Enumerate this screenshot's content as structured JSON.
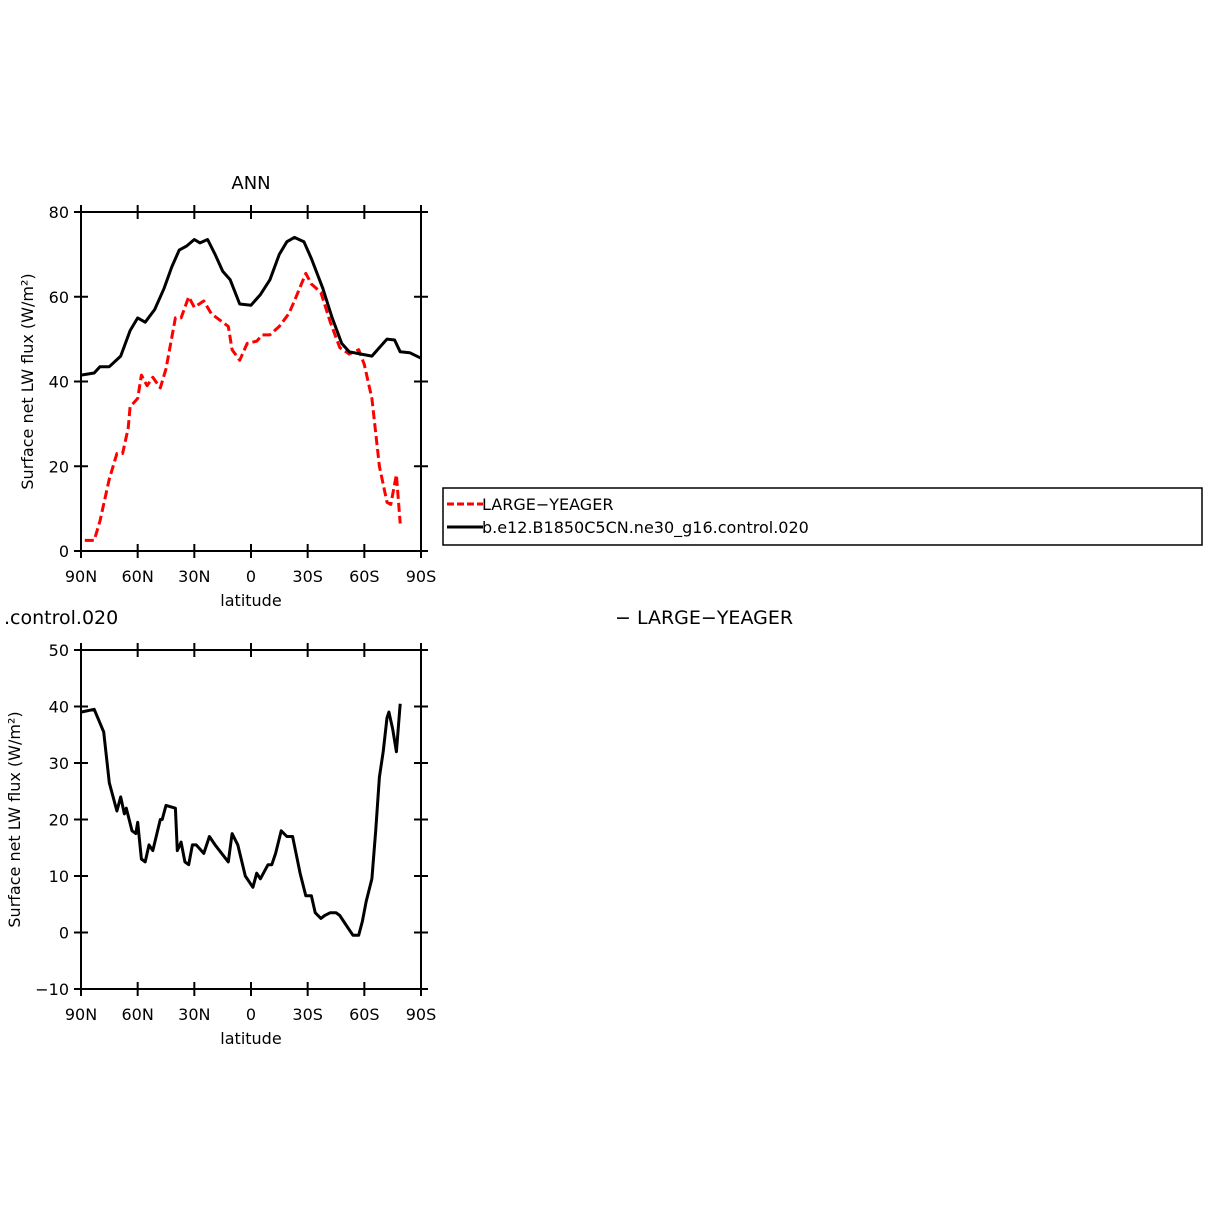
{
  "chart_data": [
    {
      "type": "line",
      "title": "ANN",
      "xlabel": "latitude",
      "ylabel": "Surface net LW flux (W/m²)",
      "xlim": [
        90,
        -90
      ],
      "ylim": [
        0,
        80
      ],
      "xticks": [
        {
          "value": 90,
          "label": "90N"
        },
        {
          "value": 60,
          "label": "60N"
        },
        {
          "value": 30,
          "label": "30N"
        },
        0,
        {
          "value": -30,
          "label": "30S"
        },
        {
          "value": -60,
          "label": "60S"
        },
        {
          "value": -90,
          "label": "90S"
        }
      ],
      "yticks": [
        0,
        20,
        40,
        60,
        80
      ],
      "legend": "right",
      "series": [
        {
          "name": "LARGE−YEAGER",
          "color": "#ff0000",
          "dashed": true,
          "x": [
            88,
            83,
            80,
            75,
            71,
            68,
            65,
            64,
            60,
            58,
            55,
            52,
            48,
            45,
            40,
            37,
            33,
            30,
            25,
            21,
            15,
            12,
            10,
            6,
            2,
            -3,
            -6,
            -10,
            -15,
            -20,
            -23,
            -29,
            -32,
            -37,
            -42,
            -47,
            -52,
            -57,
            -60,
            -64,
            -68,
            -72,
            -74,
            -77,
            -79
          ],
          "values": [
            2.5,
            2.5,
            7,
            17,
            23,
            23,
            29,
            34,
            36,
            41.5,
            39,
            41,
            38.5,
            43,
            55,
            55,
            60,
            57.5,
            59,
            56,
            54,
            53,
            47.5,
            45,
            49,
            49.5,
            51,
            51,
            53,
            56,
            59,
            65.5,
            63,
            61,
            54,
            48,
            46.5,
            47.5,
            44,
            36,
            20,
            11.5,
            11,
            18,
            6.5
          ]
        },
        {
          "name": "b.e12.B1850C5CN.ne30_g16.control.020",
          "color": "#000000",
          "dashed": false,
          "x": [
            90,
            83,
            80,
            75,
            69,
            64,
            60,
            56,
            51,
            46,
            42,
            38,
            34,
            30,
            27,
            23,
            19,
            15,
            11,
            6,
            0,
            -5,
            -10,
            -15,
            -19,
            -23,
            -28,
            -32,
            -38,
            -43,
            -48,
            -52,
            -58,
            -64,
            -68,
            -72,
            -76,
            -79,
            -84,
            -90
          ],
          "values": [
            41.5,
            42,
            43.5,
            43.5,
            46,
            52,
            55,
            54,
            57,
            62,
            67,
            71,
            72,
            73.5,
            72.7,
            73.5,
            70,
            66,
            64,
            58.3,
            58,
            60.5,
            64,
            70,
            73,
            74,
            73,
            69,
            62,
            55,
            49,
            47,
            46.5,
            46,
            48,
            50,
            49.8,
            47,
            46.8,
            45.5
          ]
        }
      ]
    },
    {
      "type": "line",
      "annotations": [
        ".control.020",
        "− LARGE−YEAGER"
      ],
      "xlabel": "latitude",
      "ylabel": "Surface net LW flux (W/m²)",
      "xlim": [
        90,
        -90
      ],
      "ylim": [
        -10,
        50
      ],
      "xticks": [
        {
          "value": 90,
          "label": "90N"
        },
        {
          "value": 60,
          "label": "60N"
        },
        {
          "value": 30,
          "label": "30N"
        },
        0,
        {
          "value": -30,
          "label": "30S"
        },
        {
          "value": -60,
          "label": "60S"
        },
        {
          "value": -90,
          "label": "90S"
        }
      ],
      "yticks": [
        {
          "value": -10,
          "label": "−10"
        },
        0,
        10,
        20,
        30,
        40,
        50
      ],
      "series": [
        {
          "color": "#000000",
          "dashed": false,
          "x": [
            90,
            83,
            78,
            75,
            71,
            69,
            67,
            66,
            63,
            61,
            60,
            58,
            56,
            54,
            52,
            48,
            47,
            45,
            40,
            39,
            37,
            35,
            33,
            31,
            29,
            25,
            22,
            19,
            12,
            10,
            7,
            3,
            -1,
            -3,
            -5,
            -9,
            -11,
            -13,
            -16,
            -19,
            -22,
            -26,
            -29,
            -32,
            -34,
            -37,
            -39,
            -42,
            -45,
            -47,
            -50,
            -52,
            -54,
            -57,
            -59,
            -61,
            -64,
            -66,
            -68,
            -70,
            -72,
            -73,
            -75,
            -77,
            -79
          ],
          "values": [
            39,
            39.5,
            35.5,
            26.5,
            21.5,
            24,
            21,
            22,
            18,
            17.5,
            19.5,
            13,
            12.5,
            15.5,
            14.5,
            20,
            20,
            22.5,
            22,
            14.5,
            16,
            12.5,
            12,
            15.5,
            15.5,
            14,
            17,
            15.5,
            12.5,
            17.5,
            15.5,
            10,
            8,
            10.5,
            9.5,
            12,
            12,
            14,
            18,
            17,
            17,
            10.5,
            6.5,
            6.5,
            3.5,
            2.5,
            3,
            3.5,
            3.5,
            3,
            1.5,
            0.5,
            -0.5,
            -0.5,
            2,
            5.5,
            9.5,
            18,
            27.5,
            32,
            38,
            39,
            36,
            32,
            40.5
          ]
        }
      ]
    }
  ]
}
